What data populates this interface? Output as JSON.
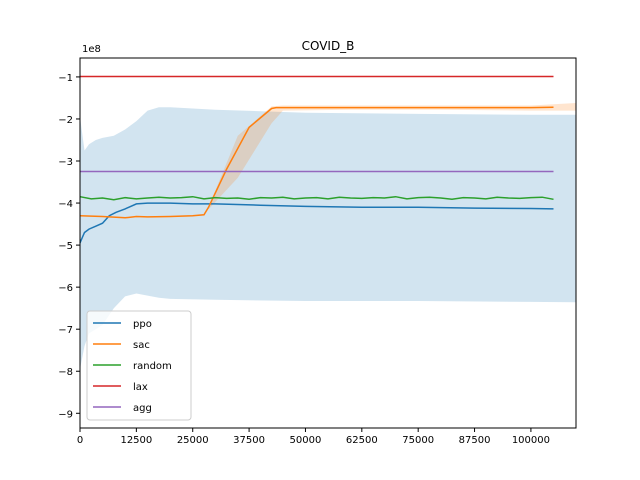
{
  "chart_data": {
    "type": "line",
    "title": "COVID_B",
    "xlabel": "",
    "ylabel": "",
    "y_offset_label": "1e8",
    "xlim": [
      0,
      110000
    ],
    "ylim": [
      -9.35,
      -0.55
    ],
    "x_ticks": [
      0,
      12500,
      25000,
      37500,
      50000,
      62500,
      75000,
      87500,
      100000
    ],
    "x_tick_labels": [
      "0",
      "12500",
      "25000",
      "37500",
      "50000",
      "62500",
      "75000",
      "87500",
      "100000"
    ],
    "y_ticks": [
      -1,
      -2,
      -3,
      -4,
      -5,
      -6,
      -7,
      -8,
      -9
    ],
    "y_tick_labels": [
      "−1",
      "−2",
      "−3",
      "−4",
      "−5",
      "−6",
      "−7",
      "−8",
      "−9"
    ],
    "grid": false,
    "legend_position": "lower-left",
    "series": [
      {
        "name": "ppo",
        "color": "#1f77b4",
        "x": [
          0,
          500,
          1000,
          2000,
          3500,
          5000,
          6500,
          8000,
          10000,
          12500,
          15000,
          20000,
          25000,
          30000,
          40000,
          50000,
          62500,
          75000,
          87500,
          100000,
          105000
        ],
        "y": [
          -4.95,
          -4.82,
          -4.7,
          -4.62,
          -4.55,
          -4.48,
          -4.3,
          -4.22,
          -4.14,
          -4.02,
          -4.0,
          -4.0,
          -4.02,
          -4.02,
          -4.05,
          -4.08,
          -4.1,
          -4.1,
          -4.12,
          -4.13,
          -4.14
        ],
        "band_x": [
          0,
          1000,
          2000,
          3500,
          5000,
          7500,
          10000,
          12500,
          15000,
          17500,
          20000,
          30000,
          50000,
          75000,
          100000,
          110000
        ],
        "band_upper": [
          -1.95,
          -2.75,
          -2.6,
          -2.5,
          -2.45,
          -2.4,
          -2.25,
          -2.05,
          -1.8,
          -1.72,
          -1.72,
          -1.78,
          -1.85,
          -1.88,
          -1.9,
          -1.9
        ],
        "band_lower": [
          -7.95,
          -7.4,
          -7.1,
          -7.0,
          -6.9,
          -6.5,
          -6.22,
          -6.15,
          -6.2,
          -6.25,
          -6.28,
          -6.3,
          -6.33,
          -6.33,
          -6.35,
          -6.36
        ]
      },
      {
        "name": "sac",
        "color": "#ff7f0e",
        "x": [
          0,
          5000,
          10000,
          12500,
          15000,
          20000,
          25000,
          27500,
          28500,
          32500,
          37500,
          42500,
          43500,
          50000,
          62500,
          75000,
          87500,
          100000,
          105000
        ],
        "y": [
          -4.3,
          -4.32,
          -4.35,
          -4.32,
          -4.33,
          -4.32,
          -4.3,
          -4.28,
          -4.1,
          -3.2,
          -2.2,
          -1.75,
          -1.73,
          -1.73,
          -1.73,
          -1.73,
          -1.73,
          -1.73,
          -1.72
        ],
        "band_x": [
          28500,
          35000,
          42500,
          45000,
          60000,
          80000,
          100000,
          110000
        ],
        "band_upper": [
          -4.1,
          -2.4,
          -1.7,
          -1.68,
          -1.68,
          -1.68,
          -1.68,
          -1.62
        ],
        "band_lower": [
          -4.15,
          -3.4,
          -2.1,
          -1.8,
          -1.78,
          -1.78,
          -1.8,
          -1.8
        ]
      },
      {
        "name": "random",
        "color": "#2ca02c",
        "x": [
          0,
          2500,
          5000,
          7500,
          10000,
          12500,
          15000,
          17500,
          20000,
          22500,
          25000,
          27500,
          30000,
          32500,
          35000,
          37500,
          40000,
          42500,
          45000,
          47500,
          50000,
          52500,
          55000,
          57500,
          60000,
          62500,
          65000,
          67500,
          70000,
          72500,
          75000,
          77500,
          80000,
          82500,
          85000,
          87500,
          90000,
          92500,
          95000,
          97500,
          100000,
          102500,
          105000
        ],
        "y": [
          -3.85,
          -3.9,
          -3.88,
          -3.92,
          -3.87,
          -3.9,
          -3.88,
          -3.86,
          -3.88,
          -3.87,
          -3.85,
          -3.9,
          -3.87,
          -3.89,
          -3.88,
          -3.91,
          -3.87,
          -3.88,
          -3.86,
          -3.9,
          -3.88,
          -3.87,
          -3.9,
          -3.86,
          -3.88,
          -3.89,
          -3.87,
          -3.88,
          -3.85,
          -3.9,
          -3.87,
          -3.86,
          -3.88,
          -3.91,
          -3.87,
          -3.88,
          -3.9,
          -3.86,
          -3.88,
          -3.89,
          -3.87,
          -3.86,
          -3.91
        ]
      },
      {
        "name": "lax",
        "color": "#d62728",
        "x": [
          0,
          105000
        ],
        "y": [
          -0.99,
          -0.99
        ]
      },
      {
        "name": "agg",
        "color": "#9467bd",
        "x": [
          0,
          105000
        ],
        "y": [
          -3.25,
          -3.25
        ]
      }
    ]
  }
}
